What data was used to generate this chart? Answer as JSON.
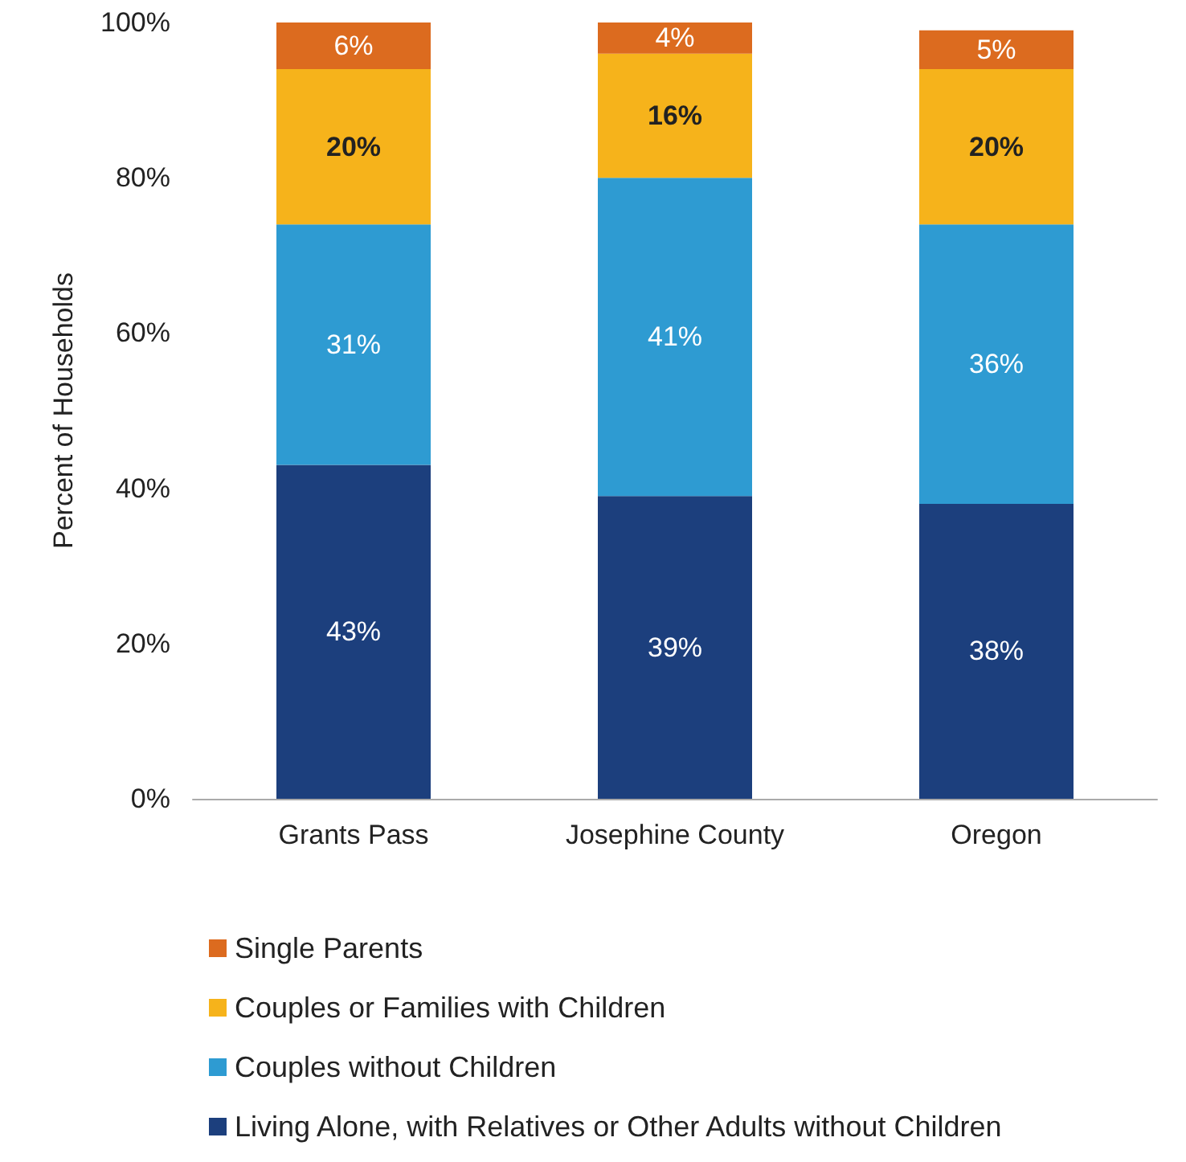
{
  "chart_data": {
    "type": "bar",
    "stacked": true,
    "ylabel": "Percent of Households",
    "categories": [
      "Grants Pass",
      "Josephine County",
      "Oregon"
    ],
    "series": [
      {
        "name": "Living Alone, with Relatives or Other Adults without Children",
        "color": "#1c3f7d",
        "values": [
          43,
          39,
          38
        ],
        "value_labels": [
          "43%",
          "39%",
          "38%"
        ]
      },
      {
        "name": "Couples without Children",
        "color": "#2e9bd2",
        "values": [
          31,
          41,
          36
        ],
        "value_labels": [
          "31%",
          "41%",
          "36%"
        ]
      },
      {
        "name": "Couples or Families with Children",
        "color": "#f6b31b",
        "values": [
          20,
          16,
          20
        ],
        "value_labels": [
          "20%",
          "16%",
          "20%"
        ]
      },
      {
        "name": "Single Parents",
        "color": "#dc6b1f",
        "values": [
          6,
          4,
          5
        ],
        "value_labels": [
          "6%",
          "4%",
          "5%"
        ]
      }
    ],
    "ylim": [
      0,
      100
    ],
    "yticks": [
      {
        "value": 0,
        "label": "0%"
      },
      {
        "value": 20,
        "label": "20%"
      },
      {
        "value": 40,
        "label": "40%"
      },
      {
        "value": 60,
        "label": "60%"
      },
      {
        "value": 80,
        "label": "80%"
      },
      {
        "value": 100,
        "label": "100%"
      }
    ],
    "grid": false,
    "legend": "bottom"
  }
}
